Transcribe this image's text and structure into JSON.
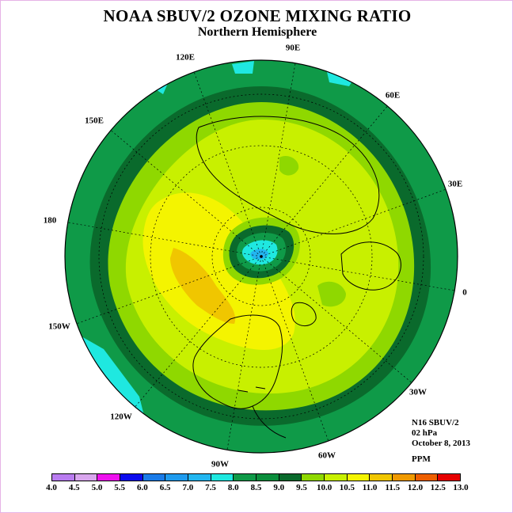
{
  "title": "NOAA SBUV/2 OZONE MIXING RATIO",
  "subtitle": "Northern Hemisphere",
  "longitude_labels": [
    "90E",
    "60E",
    "30E",
    "0",
    "30W",
    "60W",
    "90W",
    "120W",
    "150W",
    "180",
    "150E",
    "120E"
  ],
  "info": {
    "instrument": "N16 SBUV/2",
    "level": "02 hPa",
    "date": "October 8, 2013",
    "units": "PPM"
  },
  "colorbar": {
    "ticks": [
      "4.0",
      "4.5",
      "5.0",
      "5.5",
      "6.0",
      "6.5",
      "7.0",
      "7.5",
      "8.0",
      "8.5",
      "9.0",
      "9.5",
      "10.0",
      "10.5",
      "11.0",
      "11.5",
      "12.0",
      "12.5",
      "13.0"
    ],
    "colors": [
      "#b97cf0",
      "#d9a6ee",
      "#ee11ee",
      "#0b0bee",
      "#1a7be8",
      "#1f9bee",
      "#22b6f0",
      "#1fe8e0",
      "#0f9a48",
      "#0b8e3c",
      "#0a6a2c",
      "#8fd800",
      "#c8f000",
      "#f4f400",
      "#f0c600",
      "#f09a00",
      "#ee5f00",
      "#e60000",
      "#7a4a2c"
    ]
  },
  "field_colors": {
    "v8_8p5": "#0f9a48",
    "v8p5_9": "#0a6a2c",
    "v9_9p5": "#8fd800",
    "v9p5_10": "#c8f000",
    "v10_10p5": "#f4f400",
    "v10p5_11": "#f0c600",
    "v7p5_8": "#1fe8e0",
    "v7_7p5": "#22b6f0"
  }
}
